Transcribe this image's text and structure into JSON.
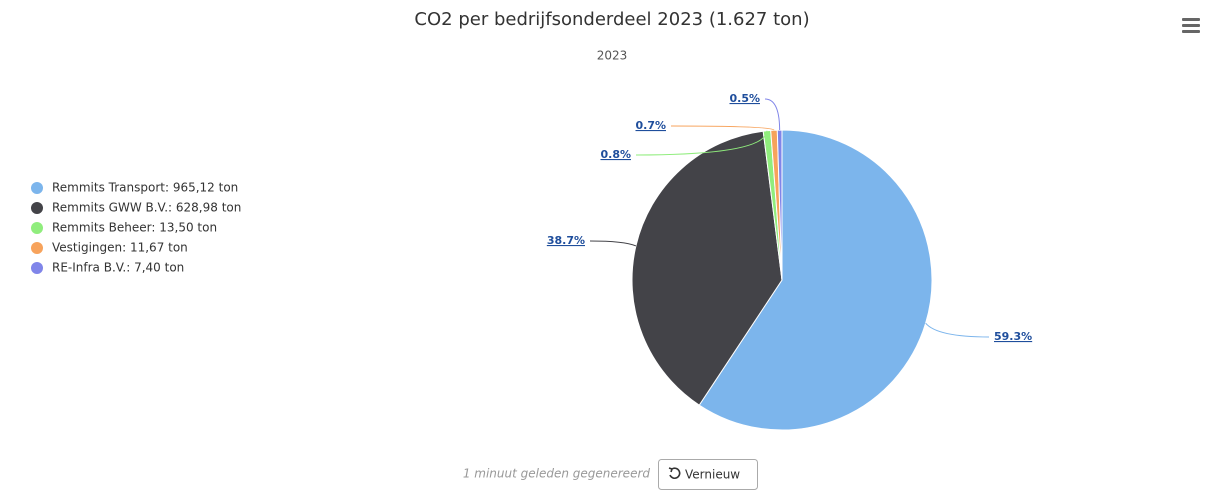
{
  "chart_data": {
    "type": "pie",
    "title": "CO2 per bedrijfsonderdeel 2023 (1.627 ton)",
    "subtitle": "2023",
    "categories": [
      "Remmits Transport: 965,12 ton",
      "Remmits GWW B.V.: 628,98 ton",
      "Remmits Beheer: 13,50 ton",
      "Vestigingen: 11,67 ton",
      "RE-Infra B.V.: 7,40 ton"
    ],
    "values": [
      59.3,
      38.7,
      0.8,
      0.7,
      0.5
    ],
    "value_labels": [
      "59.3%",
      "38.7%",
      "0.8%",
      "0.7%",
      "0.5%"
    ],
    "colors": [
      "#7cb5ec",
      "#434348",
      "#90ed7d",
      "#f7a35c",
      "#8085e9"
    ],
    "legend": "left"
  },
  "footer": {
    "status": "1 minuut geleden gegenereerd",
    "button": "Vernieuw"
  }
}
